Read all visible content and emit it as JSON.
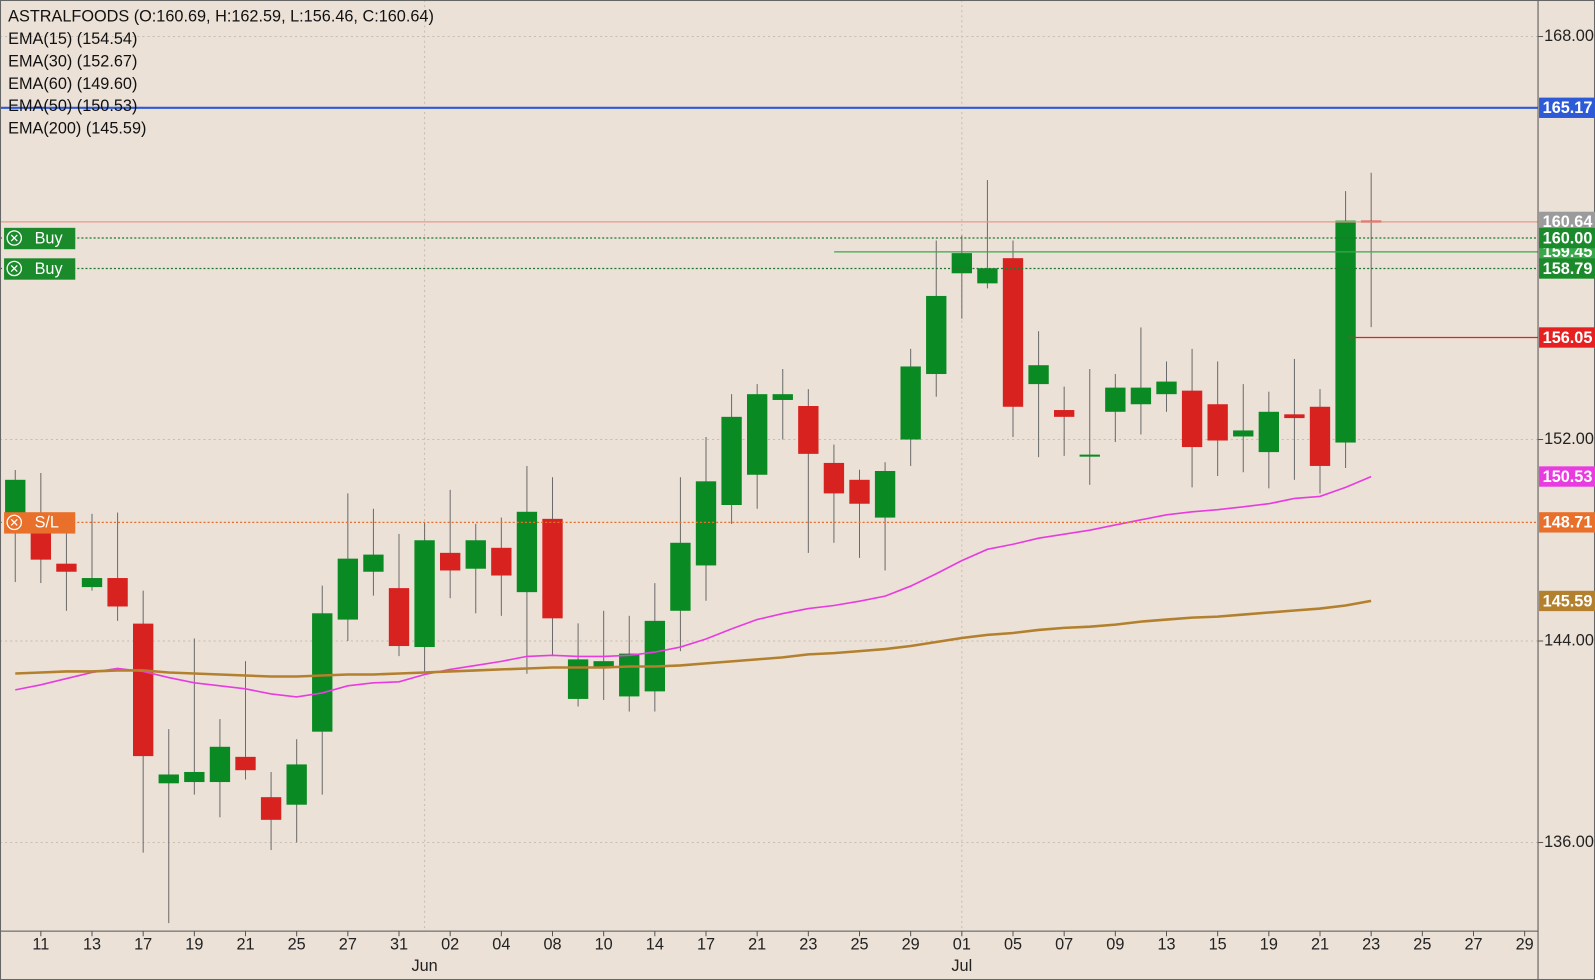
{
  "chart_data": {
    "type": "candlestick",
    "title": "ASTRALFOODS (O:160.69, H:162.59, L:156.46, C:160.64)",
    "legend": [
      "EMA(15) (154.54)",
      "EMA(30) (152.67)",
      "EMA(60) (149.60)",
      "EMA(50) (150.53)",
      "EMA(200) (145.59)"
    ],
    "categories": [
      null,
      "11",
      null,
      "13",
      null,
      "17",
      null,
      "19",
      null,
      "21",
      null,
      "25",
      null,
      "27",
      null,
      "31",
      null,
      "02",
      null,
      "04",
      null,
      "08",
      null,
      "10",
      null,
      "14",
      null,
      "17",
      null,
      "21",
      null,
      "23",
      null,
      "25",
      null,
      "29",
      null,
      "01",
      null,
      "05",
      null,
      "07",
      null,
      "09",
      null,
      "13",
      null,
      "15",
      null,
      "19",
      null,
      "21",
      null,
      "23",
      null,
      "25",
      null,
      "27",
      null,
      "29"
    ],
    "months": [
      null,
      null,
      null,
      null,
      null,
      null,
      null,
      null,
      null,
      null,
      null,
      null,
      null,
      null,
      null,
      null,
      "Jun",
      null,
      null,
      null,
      null,
      null,
      null,
      null,
      null,
      null,
      null,
      null,
      null,
      null,
      null,
      null,
      null,
      null,
      null,
      null,
      null,
      "Jul",
      null,
      null,
      null,
      null,
      null,
      null,
      null,
      null,
      null,
      null,
      null,
      null,
      null,
      null,
      null,
      null,
      null,
      null,
      null,
      null,
      null,
      null
    ],
    "open": [
      148.61,
      148.32,
      147.07,
      146.14,
      146.5,
      144.69,
      138.35,
      138.4,
      138.4,
      139.4,
      137.8,
      137.5,
      140.4,
      144.85,
      146.75,
      146.1,
      143.76,
      147.5,
      146.87,
      147.7,
      145.94,
      148.85,
      141.7,
      142.95,
      141.8,
      142.0,
      145.2,
      147.0,
      149.4,
      150.6,
      153.57,
      153.33,
      151.07,
      150.4,
      148.9,
      152.0,
      154.6,
      158.6,
      158.2,
      159.2,
      154.2,
      153.17,
      151.35,
      153.1,
      153.4,
      153.8,
      153.94,
      153.4,
      152.12,
      151.5,
      153.0,
      153.3,
      151.88,
      160.69,
      null,
      null,
      null,
      null,
      null,
      null
    ],
    "high": [
      150.79,
      150.67,
      149.05,
      149.05,
      149.1,
      146.0,
      140.5,
      144.1,
      140.9,
      143.2,
      138.8,
      140.1,
      146.2,
      149.86,
      149.25,
      148.25,
      148.7,
      150.0,
      148.65,
      148.9,
      150.95,
      150.5,
      144.7,
      145.2,
      145.0,
      146.3,
      150.5,
      152.1,
      153.8,
      154.2,
      154.8,
      154.0,
      151.8,
      150.8,
      151.1,
      155.6,
      159.9,
      160.1,
      162.3,
      159.9,
      156.3,
      154.1,
      154.8,
      154.6,
      156.45,
      155.1,
      155.6,
      155.1,
      154.2,
      153.9,
      155.2,
      154.0,
      161.86,
      162.59,
      null,
      null,
      null,
      null,
      null,
      null
    ],
    "low": [
      146.34,
      146.3,
      145.2,
      146.0,
      144.8,
      135.6,
      132.8,
      137.9,
      137.0,
      138.5,
      135.7,
      136.0,
      137.9,
      144.0,
      145.8,
      143.4,
      142.7,
      145.7,
      145.1,
      145.0,
      142.7,
      143.4,
      141.4,
      141.66,
      141.2,
      141.2,
      143.6,
      145.6,
      148.65,
      149.25,
      152.0,
      147.5,
      147.9,
      147.3,
      146.8,
      150.95,
      153.7,
      156.8,
      158.0,
      152.1,
      151.3,
      151.35,
      150.2,
      151.9,
      152.2,
      153.1,
      150.1,
      150.55,
      150.7,
      150.06,
      150.4,
      149.86,
      150.87,
      156.46,
      null,
      null,
      null,
      null,
      null,
      null
    ],
    "close": [
      150.4,
      147.23,
      146.75,
      146.5,
      145.37,
      139.43,
      138.7,
      138.8,
      139.8,
      138.87,
      136.9,
      139.1,
      145.1,
      147.27,
      147.43,
      143.8,
      148.0,
      146.8,
      148.0,
      146.6,
      149.13,
      144.9,
      143.27,
      143.2,
      143.5,
      144.8,
      147.9,
      150.34,
      152.9,
      153.8,
      153.8,
      151.43,
      149.86,
      149.45,
      150.75,
      154.9,
      157.7,
      159.4,
      158.8,
      153.3,
      154.95,
      152.9,
      151.4,
      154.06,
      154.06,
      154.3,
      151.7,
      151.96,
      152.36,
      153.1,
      152.85,
      150.95,
      160.69,
      160.64,
      null,
      null,
      null,
      null,
      null,
      null
    ],
    "up_color": "#0a8a22",
    "down_color": "#d8221f",
    "series": [
      {
        "color": "#e83ce0",
        "end_label": "150.53",
        "values": [
          142.06,
          142.26,
          142.51,
          142.75,
          142.91,
          142.79,
          142.55,
          142.34,
          142.22,
          142.1,
          141.9,
          141.78,
          141.94,
          142.22,
          142.34,
          142.38,
          142.67,
          142.87,
          143.03,
          143.19,
          143.39,
          143.43,
          143.39,
          143.39,
          143.43,
          143.56,
          143.76,
          144.08,
          144.48,
          144.85,
          145.09,
          145.29,
          145.41,
          145.58,
          145.78,
          146.18,
          146.67,
          147.19,
          147.64,
          147.84,
          148.08,
          148.24,
          148.4,
          148.61,
          148.81,
          149.01,
          149.13,
          149.21,
          149.33,
          149.45,
          149.66,
          149.74,
          150.1,
          150.53,
          null,
          null,
          null,
          null,
          null,
          null
        ]
      },
      {
        "color": "#b3802e",
        "end_label": "145.59",
        "values": [
          142.71,
          142.75,
          142.79,
          142.79,
          142.83,
          142.83,
          142.75,
          142.71,
          142.67,
          142.63,
          142.59,
          142.59,
          142.63,
          142.67,
          142.67,
          142.71,
          142.75,
          142.79,
          142.83,
          142.87,
          142.91,
          142.95,
          142.95,
          142.95,
          142.99,
          142.99,
          143.03,
          143.11,
          143.19,
          143.27,
          143.35,
          143.47,
          143.52,
          143.6,
          143.68,
          143.8,
          143.96,
          144.12,
          144.24,
          144.32,
          144.44,
          144.52,
          144.57,
          144.65,
          144.77,
          144.85,
          144.93,
          144.97,
          145.05,
          145.13,
          145.21,
          145.29,
          145.41,
          145.59,
          null,
          null,
          null,
          null,
          null,
          null
        ]
      }
    ],
    "ylim": [
      132.48,
      169.45
    ],
    "yticks": [
      {
        "value": 136,
        "label": "136.00"
      },
      {
        "value": 144,
        "label": "144.00"
      },
      {
        "value": 152,
        "label": "152.00"
      },
      {
        "value": 168,
        "label": "168.00"
      }
    ],
    "grid": true,
    "price_lines": [
      {
        "value": 165.17,
        "label": "165.17",
        "color": "#2d5bd8",
        "style": "solid"
      },
      {
        "value": 160.64,
        "label": "160.64",
        "color": "#e59a88",
        "label_color": "#9b9b9b",
        "style": "solid"
      },
      {
        "value": 159.45,
        "label": "159.45",
        "color": "#3aa84a",
        "style": "solid"
      },
      {
        "value": 160,
        "label": "160.00",
        "color": "#1d7a2e",
        "label_color": "#1a8a2a",
        "style": "dotted",
        "tag": "Buy"
      },
      {
        "value": 158.79,
        "label": "158.79",
        "color": "#1d7a2e",
        "label_color": "#1a8a2a",
        "style": "dotted",
        "tag": "Buy"
      },
      {
        "value": 156.05,
        "label": "156.05",
        "color": "#e62020",
        "style": "solid"
      },
      {
        "value": 148.71,
        "label": "148.71",
        "color": "#e8702a",
        "style": "dotted",
        "tag": "S/L"
      }
    ]
  }
}
